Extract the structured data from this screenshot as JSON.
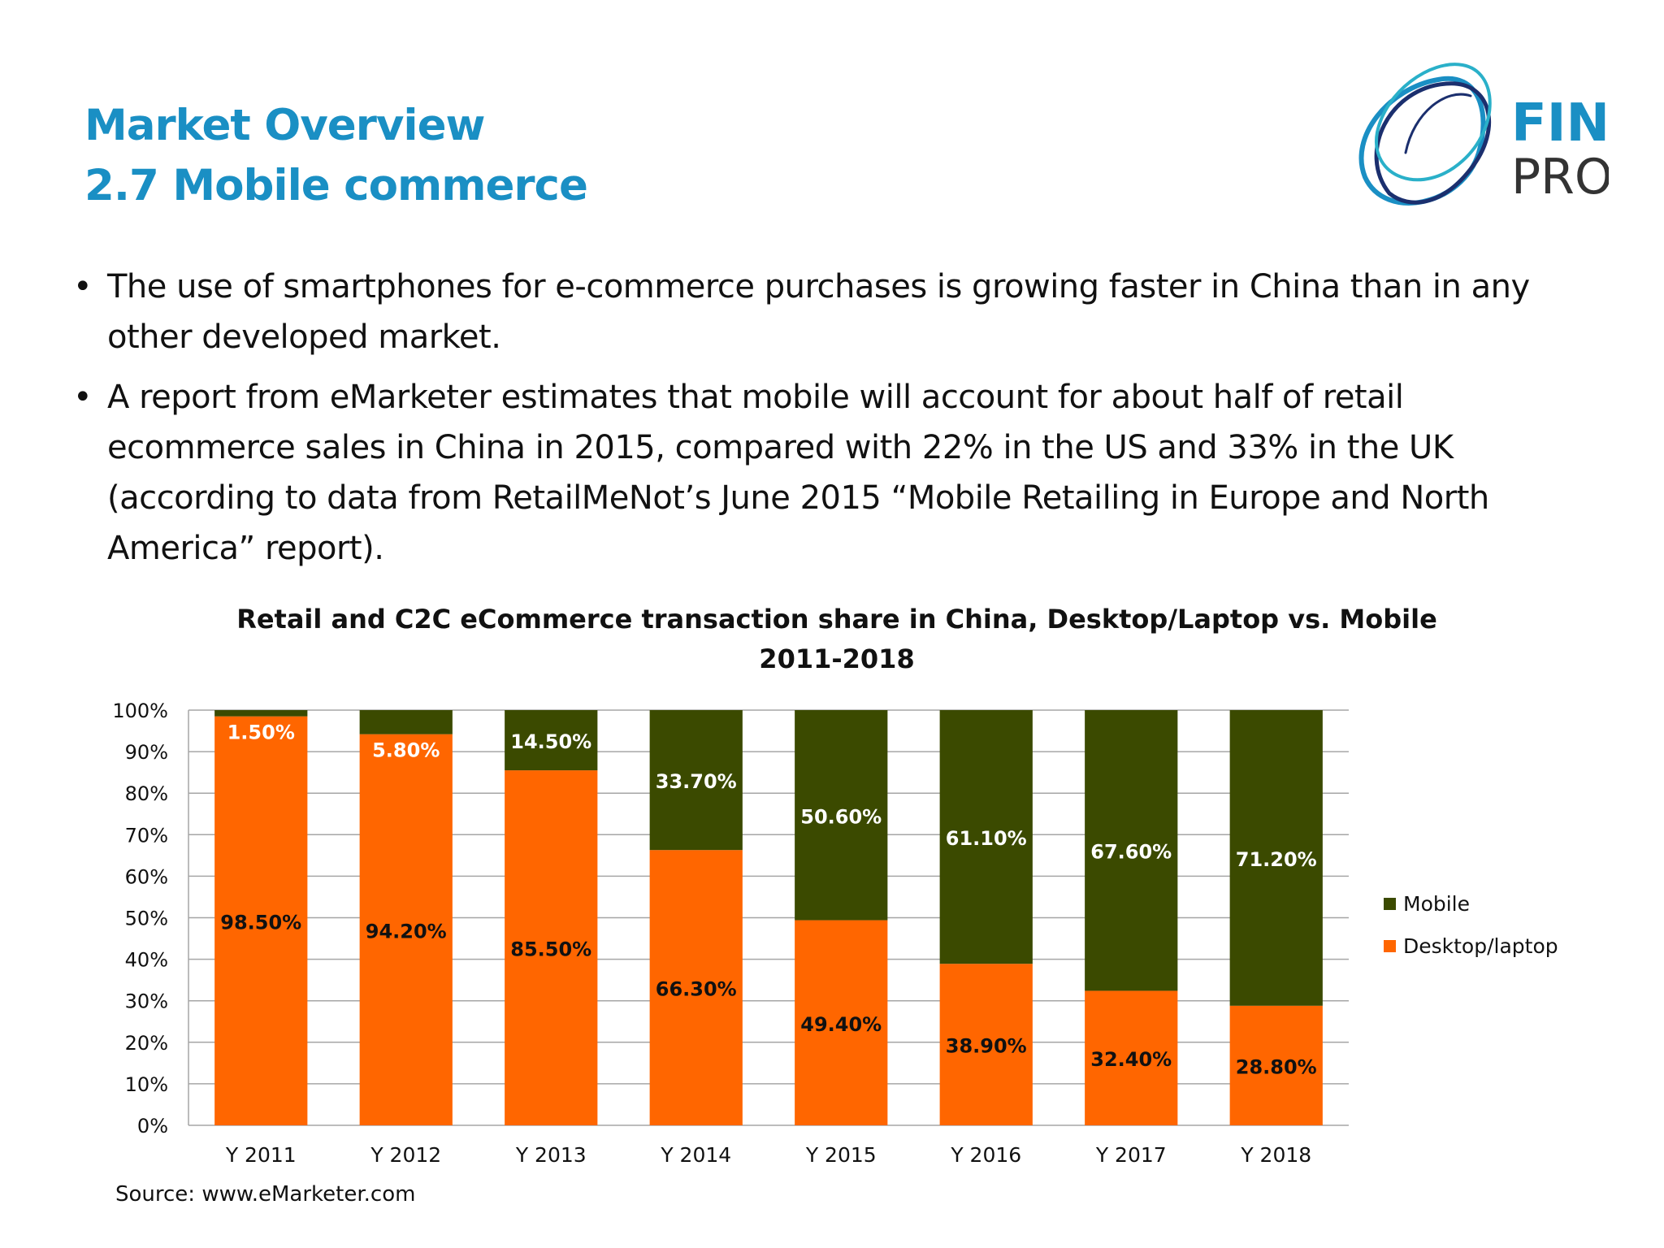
{
  "slide": {
    "title_line1": "Market Overview",
    "title_line2": "2.7 Mobile commerce",
    "logo_text_top": "FIN",
    "logo_text_bottom": "PRO",
    "bullets": [
      "The use of smartphones for e-commerce purchases is growing faster in China than in any other developed market.",
      "A report from eMarketer estimates that mobile will account for about half of retail ecommerce sales in China in 2015, compared with 22% in the US and 33% in the UK (according to data from RetailMeNot’s June 2015 “Mobile Retailing in Europe and North America” report)."
    ],
    "bullet_symbol": "•",
    "source": "Source: www.eMarketer.com"
  },
  "colors": {
    "title": "#1a8fc4",
    "mobile": "#3b4a00",
    "desktop": "#ff6600",
    "grid": "#a6a6a6"
  },
  "chart_data": {
    "type": "bar",
    "stacked": true,
    "title_line1": "Retail and C2C eCommerce transaction share in China, Desktop/Laptop vs. Mobile",
    "title_line2": "2011-2018",
    "categories": [
      "Y 2011",
      "Y 2012",
      "Y 2013",
      "Y 2014",
      "Y 2015",
      "Y 2016",
      "Y 2017",
      "Y 2018"
    ],
    "series": [
      {
        "name": "Desktop/laptop",
        "values": [
          98.5,
          94.2,
          85.5,
          66.3,
          49.4,
          38.9,
          32.4,
          28.8
        ],
        "labels": [
          "98.50%",
          "94.20%",
          "85.50%",
          "66.30%",
          "49.40%",
          "38.90%",
          "32.40%",
          "28.80%"
        ]
      },
      {
        "name": "Mobile",
        "values": [
          1.5,
          5.8,
          14.5,
          33.7,
          50.6,
          61.1,
          67.6,
          71.2
        ],
        "labels": [
          "1.50%",
          "5.80%",
          "14.50%",
          "33.70%",
          "50.60%",
          "61.10%",
          "67.60%",
          "71.20%"
        ]
      }
    ],
    "ylim": [
      0,
      100
    ],
    "y_ticks": [
      "0%",
      "10%",
      "20%",
      "30%",
      "40%",
      "50%",
      "60%",
      "70%",
      "80%",
      "90%",
      "100%"
    ],
    "grid": true,
    "legend_position": "right",
    "legend": [
      "Mobile",
      "Desktop/laptop"
    ]
  }
}
